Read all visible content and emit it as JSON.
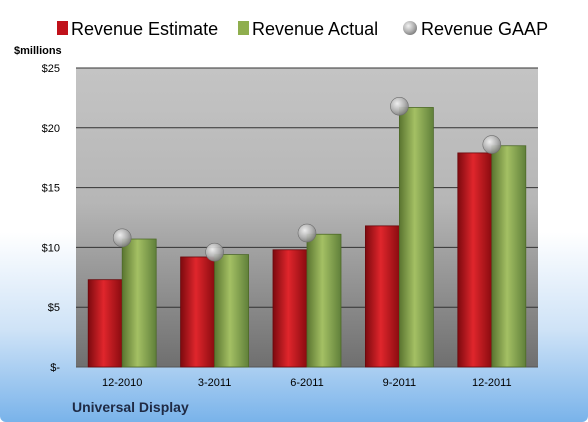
{
  "chart_data": {
    "type": "bar",
    "title": "",
    "unit_label": "$millions",
    "footer_label": "Universal Display",
    "categories": [
      "12-2010",
      "3-2011",
      "6-2011",
      "9-2011",
      "12-2011"
    ],
    "series": [
      {
        "name": "Revenue Estimate",
        "type": "bar",
        "color": "#c0111a",
        "values": [
          7.3,
          9.2,
          9.8,
          11.8,
          17.9
        ]
      },
      {
        "name": "Revenue Actual",
        "type": "bar",
        "color": "#8fae4e",
        "values": [
          10.7,
          9.4,
          11.1,
          21.7,
          18.5
        ]
      },
      {
        "name": "Revenue GAAP",
        "type": "marker",
        "color": "#a8a8a8",
        "values": [
          10.8,
          9.6,
          11.2,
          21.8,
          18.6
        ]
      }
    ],
    "y_ticks": [
      {
        "value": 0,
        "label": "$-"
      },
      {
        "value": 5,
        "label": "$5"
      },
      {
        "value": 10,
        "label": "$10"
      },
      {
        "value": 15,
        "label": "$15"
      },
      {
        "value": 20,
        "label": "$20"
      },
      {
        "value": 25,
        "label": "$25"
      }
    ],
    "ylim": [
      0,
      25
    ],
    "grid": true,
    "legend_position": "top"
  }
}
